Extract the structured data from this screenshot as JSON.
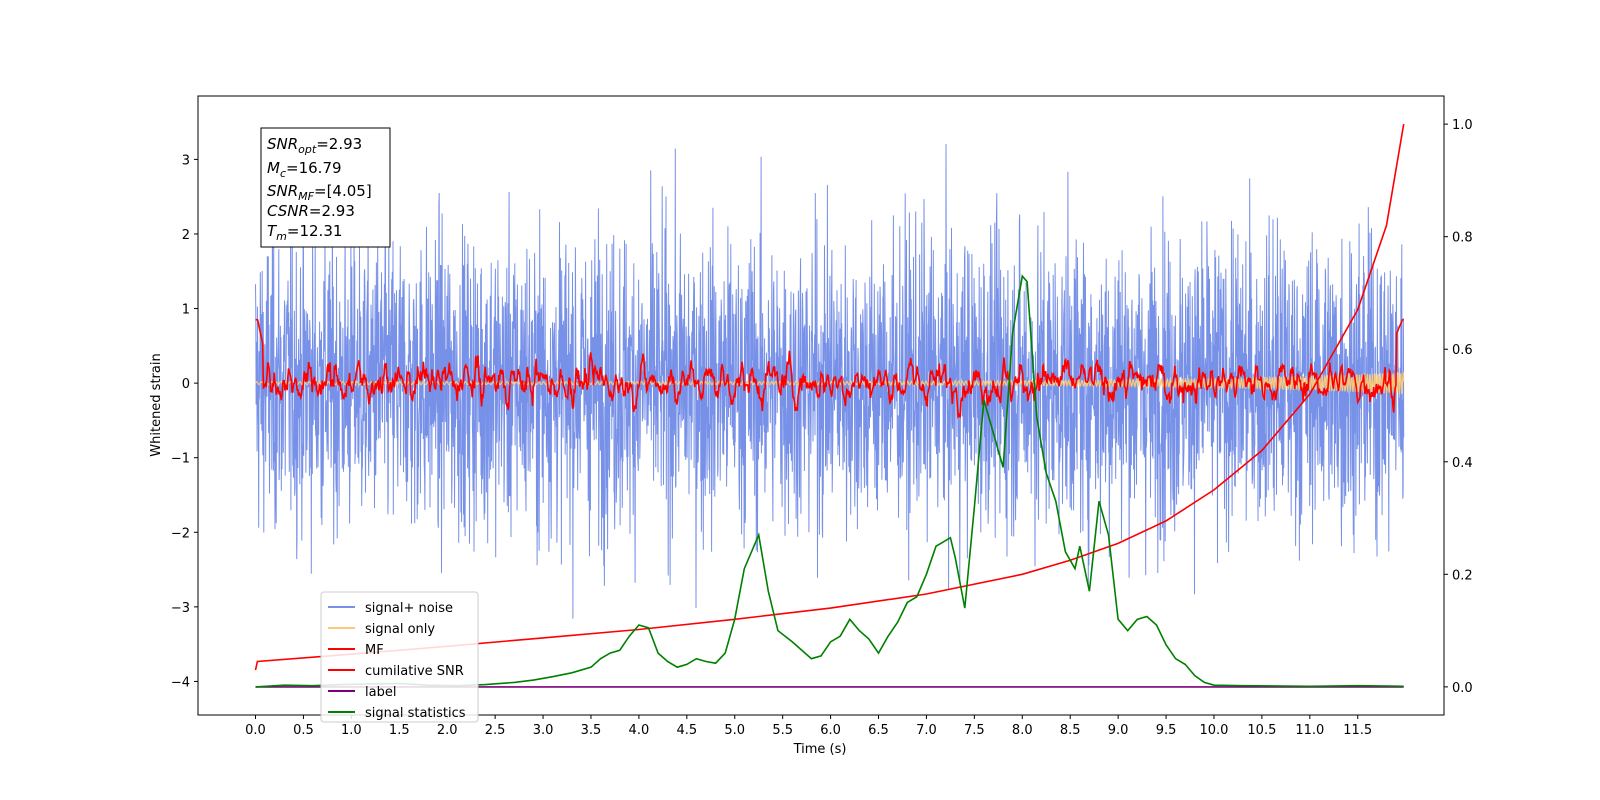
{
  "chart_data": {
    "type": "line",
    "xlabel": "Time (s)",
    "ylabel": "Whitened strain",
    "xlim": [
      -0.6,
      12.4
    ],
    "ylim": [
      -4.45,
      3.85
    ],
    "y2lim": [
      -0.05,
      1.05
    ],
    "x_ticks": [
      "0.0",
      "0.5",
      "1.0",
      "1.5",
      "2.0",
      "2.5",
      "3.0",
      "3.5",
      "4.0",
      "4.5",
      "5.0",
      "5.5",
      "6.0",
      "6.5",
      "7.0",
      "7.5",
      "8.0",
      "8.5",
      "9.0",
      "9.5",
      "10.0",
      "10.5",
      "11.0",
      "11.5"
    ],
    "y_ticks": [
      "3",
      "2",
      "1",
      "0",
      "−1",
      "−2",
      "−3",
      "−4"
    ],
    "y2_ticks": [
      "1.0",
      "0.8",
      "0.6",
      "0.4",
      "0.2",
      "0.0"
    ],
    "grid": false,
    "legend_position": "lower-left",
    "stats": {
      "snr_opt": {
        "label": "SNR",
        "sub": "opt",
        "value": "=2.93"
      },
      "mc": {
        "label": "M",
        "sub": "c",
        "value": "=16.79"
      },
      "snr_mf": {
        "label": "SNR",
        "sub": "MF",
        "value": "=[4.05]"
      },
      "csnr": {
        "label": "CSNR",
        "sub": "",
        "value": "=2.93"
      },
      "tm": {
        "label": "T",
        "sub": "m",
        "value": "=12.31"
      }
    },
    "series": [
      {
        "name": "signal+ noise",
        "color": "#7891e8",
        "axis": "left",
        "kind": "noise",
        "amplitude": 1.0,
        "x_range": [
          0,
          11.98
        ]
      },
      {
        "name": "signal only",
        "color": "#f7c97a",
        "axis": "left",
        "kind": "chirp",
        "x_range": [
          0,
          11.98
        ],
        "amplitude_range": [
          0.02,
          0.15
        ]
      },
      {
        "name": "MF",
        "color": "#ff0000",
        "axis": "left",
        "kind": "matched-filter",
        "x_range": [
          0,
          11.98
        ],
        "peak_x": 0.03,
        "peak_y": 0.98
      },
      {
        "name": "cumilative SNR",
        "color": "#ff0000",
        "axis": "right",
        "x": [
          0,
          0.02,
          1,
          2,
          3,
          4,
          5,
          6,
          7,
          8,
          8.5,
          9,
          9.5,
          10,
          10.5,
          11,
          11.5,
          11.8,
          11.98
        ],
        "y": [
          0.03,
          0.045,
          0.058,
          0.072,
          0.087,
          0.102,
          0.12,
          0.14,
          0.165,
          0.2,
          0.225,
          0.255,
          0.295,
          0.35,
          0.42,
          0.52,
          0.67,
          0.82,
          1.0
        ]
      },
      {
        "name": "label",
        "color": "#7b007b",
        "axis": "right",
        "x": [
          0,
          11.98
        ],
        "y": [
          0.0,
          0.0
        ]
      },
      {
        "name": "signal statistics",
        "color": "#008000",
        "axis": "right",
        "x": [
          0,
          0.3,
          0.6,
          0.9,
          1.2,
          1.5,
          1.8,
          2.1,
          2.4,
          2.7,
          2.9,
          3.1,
          3.3,
          3.5,
          3.6,
          3.7,
          3.8,
          3.9,
          4.0,
          4.1,
          4.2,
          4.3,
          4.4,
          4.5,
          4.6,
          4.7,
          4.8,
          4.9,
          5.0,
          5.1,
          5.15,
          5.25,
          5.35,
          5.45,
          5.6,
          5.8,
          5.9,
          6.0,
          6.1,
          6.2,
          6.3,
          6.4,
          6.5,
          6.6,
          6.7,
          6.8,
          6.9,
          7.0,
          7.1,
          7.15,
          7.25,
          7.3,
          7.4,
          7.5,
          7.6,
          7.7,
          7.8,
          7.9,
          8.0,
          8.05,
          8.15,
          8.25,
          8.35,
          8.45,
          8.55,
          8.6,
          8.7,
          8.8,
          8.9,
          9.0,
          9.1,
          9.2,
          9.3,
          9.4,
          9.5,
          9.6,
          9.7,
          9.8,
          9.9,
          10.0,
          10.3,
          11.0,
          11.5,
          11.98
        ],
        "y": [
          0.0,
          0.003,
          0.002,
          0.004,
          0.005,
          0.006,
          0.003,
          0.002,
          0.004,
          0.008,
          0.012,
          0.018,
          0.025,
          0.035,
          0.05,
          0.06,
          0.065,
          0.09,
          0.11,
          0.105,
          0.06,
          0.045,
          0.035,
          0.04,
          0.05,
          0.045,
          0.042,
          0.06,
          0.12,
          0.21,
          0.23,
          0.27,
          0.17,
          0.1,
          0.08,
          0.05,
          0.055,
          0.08,
          0.09,
          0.12,
          0.1,
          0.085,
          0.06,
          0.09,
          0.115,
          0.15,
          0.16,
          0.2,
          0.25,
          0.255,
          0.265,
          0.23,
          0.14,
          0.32,
          0.51,
          0.45,
          0.39,
          0.63,
          0.73,
          0.72,
          0.48,
          0.38,
          0.33,
          0.24,
          0.21,
          0.25,
          0.17,
          0.33,
          0.27,
          0.12,
          0.1,
          0.12,
          0.125,
          0.11,
          0.075,
          0.05,
          0.04,
          0.02,
          0.008,
          0.003,
          0.002,
          0.001,
          0.002,
          0.001
        ]
      }
    ]
  }
}
